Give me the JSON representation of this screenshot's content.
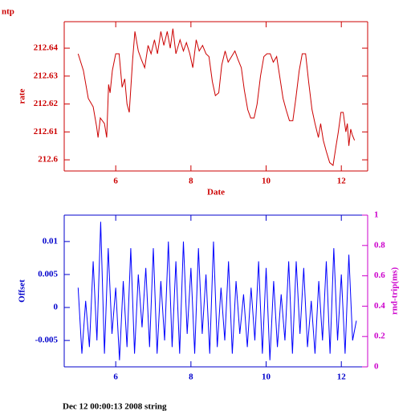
{
  "chart_data": [
    {
      "type": "line",
      "title": "ntp",
      "ylabel": "rate",
      "xlabel": "Date",
      "color": "#cc0000",
      "xlim": [
        4.63,
        12.7
      ],
      "xticks": [
        6,
        8,
        10,
        12
      ],
      "ylim": [
        212.596,
        212.6495
      ],
      "yticks": [
        212.6,
        212.61,
        212.62,
        212.63,
        212.64
      ],
      "x": [
        5.0,
        5.14,
        5.27,
        5.4,
        5.49,
        5.53,
        5.59,
        5.7,
        5.76,
        5.81,
        5.85,
        5.91,
        6.0,
        6.09,
        6.17,
        6.24,
        6.3,
        6.36,
        6.45,
        6.51,
        6.6,
        6.68,
        6.77,
        6.86,
        6.94,
        7.03,
        7.11,
        7.2,
        7.28,
        7.37,
        7.45,
        7.52,
        7.6,
        7.71,
        7.8,
        7.88,
        7.97,
        8.05,
        8.14,
        8.22,
        8.31,
        8.4,
        8.48,
        8.57,
        8.65,
        8.74,
        8.82,
        8.91,
        8.99,
        9.08,
        9.17,
        9.25,
        9.34,
        9.42,
        9.51,
        9.59,
        9.68,
        9.76,
        9.85,
        9.94,
        10.02,
        10.11,
        10.19,
        10.28,
        10.36,
        10.45,
        10.53,
        10.62,
        10.71,
        10.79,
        10.88,
        10.96,
        11.05,
        11.13,
        11.22,
        11.3,
        11.39,
        11.45,
        11.52,
        11.6,
        11.69,
        11.78,
        11.86,
        11.92,
        11.99,
        12.05,
        12.12,
        12.16,
        12.2,
        12.25,
        12.29,
        12.35
      ],
      "values": [
        212.638,
        212.632,
        212.622,
        212.619,
        212.612,
        212.608,
        212.615,
        212.613,
        212.608,
        212.627,
        212.624,
        212.632,
        212.638,
        212.638,
        212.626,
        212.629,
        212.62,
        212.617,
        212.636,
        212.646,
        212.639,
        212.636,
        212.633,
        212.641,
        212.638,
        212.643,
        212.638,
        212.646,
        212.641,
        212.646,
        212.64,
        212.647,
        212.638,
        212.643,
        212.639,
        212.642,
        212.638,
        212.633,
        212.643,
        212.639,
        212.641,
        212.638,
        212.637,
        212.628,
        212.623,
        212.624,
        212.634,
        212.639,
        212.635,
        212.637,
        212.639,
        212.636,
        212.633,
        212.625,
        212.618,
        212.615,
        212.615,
        212.62,
        212.63,
        212.637,
        212.638,
        212.638,
        212.635,
        212.637,
        212.63,
        212.622,
        212.618,
        212.614,
        212.614,
        212.622,
        212.632,
        212.638,
        212.638,
        212.628,
        212.618,
        212.613,
        212.608,
        212.613,
        212.607,
        212.603,
        212.599,
        212.598,
        212.605,
        212.61,
        212.617,
        212.617,
        212.61,
        212.613,
        212.605,
        212.611,
        212.609,
        212.607
      ]
    },
    {
      "type": "line",
      "ylabel": "Offset",
      "y2label": "rnd-trip(ms)",
      "color": "#0000ff",
      "xlim": [
        4.63,
        12.7
      ],
      "xticks": [
        6,
        8,
        10,
        12
      ],
      "ylim": [
        -0.009,
        0.014
      ],
      "yticks": [
        -0.005,
        0,
        0.005,
        0.01
      ],
      "y2lim": [
        0,
        1
      ],
      "y2ticks": [
        0,
        0.2,
        0.4,
        0.6,
        0.8,
        1
      ],
      "x": [
        5.0,
        5.1,
        5.2,
        5.3,
        5.4,
        5.5,
        5.6,
        5.7,
        5.8,
        5.9,
        6.0,
        6.1,
        6.2,
        6.3,
        6.4,
        6.5,
        6.6,
        6.7,
        6.8,
        6.9,
        7.0,
        7.1,
        7.2,
        7.3,
        7.4,
        7.5,
        7.6,
        7.7,
        7.8,
        7.9,
        8.0,
        8.1,
        8.2,
        8.3,
        8.4,
        8.5,
        8.6,
        8.7,
        8.8,
        8.9,
        9.0,
        9.1,
        9.2,
        9.3,
        9.4,
        9.5,
        9.6,
        9.7,
        9.8,
        9.9,
        10.0,
        10.1,
        10.2,
        10.3,
        10.4,
        10.5,
        10.6,
        10.7,
        10.8,
        10.9,
        11.0,
        11.1,
        11.2,
        11.3,
        11.4,
        11.5,
        11.6,
        11.7,
        11.8,
        11.9,
        12.0,
        12.1,
        12.2,
        12.3,
        12.4
      ],
      "values": [
        0.003,
        -0.007,
        0.001,
        -0.006,
        0.007,
        -0.005,
        0.013,
        -0.007,
        0.009,
        -0.004,
        0.003,
        -0.008,
        0.004,
        -0.006,
        0.009,
        -0.007,
        0.005,
        -0.003,
        0.006,
        -0.006,
        0.009,
        -0.007,
        0.004,
        -0.005,
        0.01,
        -0.006,
        0.007,
        -0.007,
        0.01,
        -0.004,
        0.006,
        -0.007,
        0.009,
        -0.004,
        0.005,
        -0.007,
        0.01,
        -0.006,
        0.003,
        -0.005,
        0.007,
        -0.007,
        0.004,
        -0.004,
        0.002,
        -0.006,
        0.003,
        -0.005,
        0.007,
        -0.007,
        0.006,
        -0.008,
        0.004,
        -0.006,
        0.002,
        -0.005,
        0.007,
        -0.007,
        0.007,
        -0.004,
        0.006,
        -0.006,
        0.001,
        -0.007,
        0.004,
        -0.005,
        0.007,
        -0.007,
        0.009,
        -0.005,
        0.005,
        -0.007,
        0.008,
        -0.005,
        -0.002
      ]
    }
  ],
  "footer": "Dec 12 00:00:13 2008 string"
}
